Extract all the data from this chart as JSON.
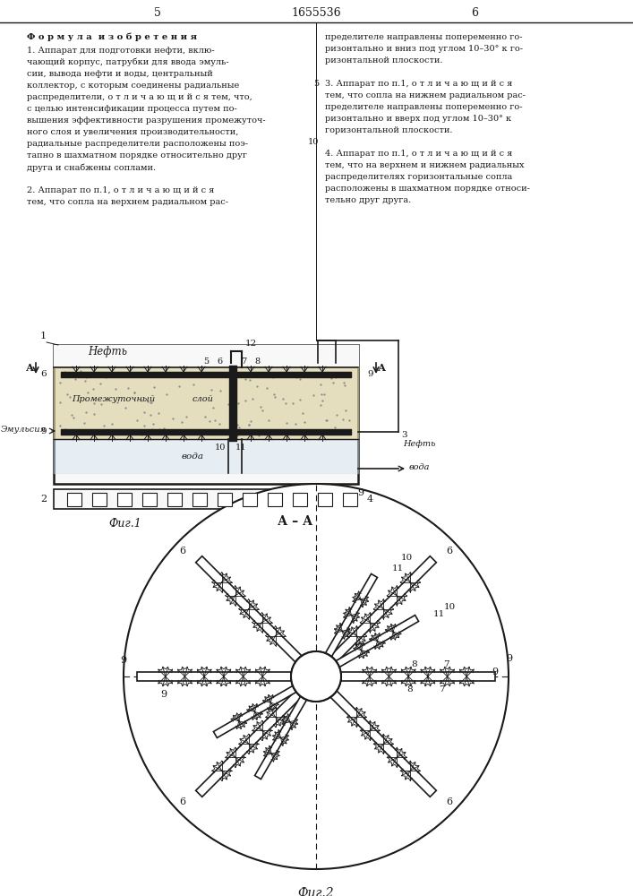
{
  "page_num_left": "5",
  "page_num_center": "1655536",
  "page_num_right": "6",
  "line_color": "#1a1a1a",
  "text_color": "#1a1a1a",
  "fig1_caption": "Фиг.1",
  "fig2_caption": "Фиг.2",
  "aa_label": "А – А",
  "formula_title": "Ф о р м у л а  и з о б р е т е н и я",
  "left_col_lines": [
    "1. Аппарат для подготовки нефти, вклю-",
    "чающий корпус, патрубки для ввода эмуль-",
    "сии, вывода нефти и воды, центральный",
    "коллектор, с которым соединены радиальные",
    "распределители, о т л и ч а ю щ и й с я тем, что,",
    "с целью интенсификации процесса путем по-",
    "вышения эффективности разрушения промежуточ-",
    "ного слоя и увеличения производительности,",
    "радиальные распределители расположены поэ-",
    "тапно в шахматном порядке относительно друг",
    "друга и снабжены соплами.",
    "",
    "2. Аппарат по п.1, о т л и ч а ю щ и й с я",
    "тем, что сопла на верхнем радиальном рас-"
  ],
  "right_col_lines": [
    "пределителе направлены попеременно го-",
    "ризонтально и вниз под углом 10–30° к го-",
    "ризонтальной плоскости.",
    "",
    "3. Аппарат по п.1, о т л и ч а ю щ и й с я",
    "тем, что сопла на нижнем радиальном рас-",
    "пределителе направлены попеременно го-",
    "ризонтально и вверх под углом 10–30° к",
    "горизонтальной плоскости.",
    "",
    "4. Аппарат по п.1, о т л и ч а ю щ и й с я",
    "тем, что на верхнем и нижнем радиальных",
    "распределителях горизонтальные сопла",
    "расположены в шахматном порядке относи-",
    "тельно друг друга."
  ]
}
